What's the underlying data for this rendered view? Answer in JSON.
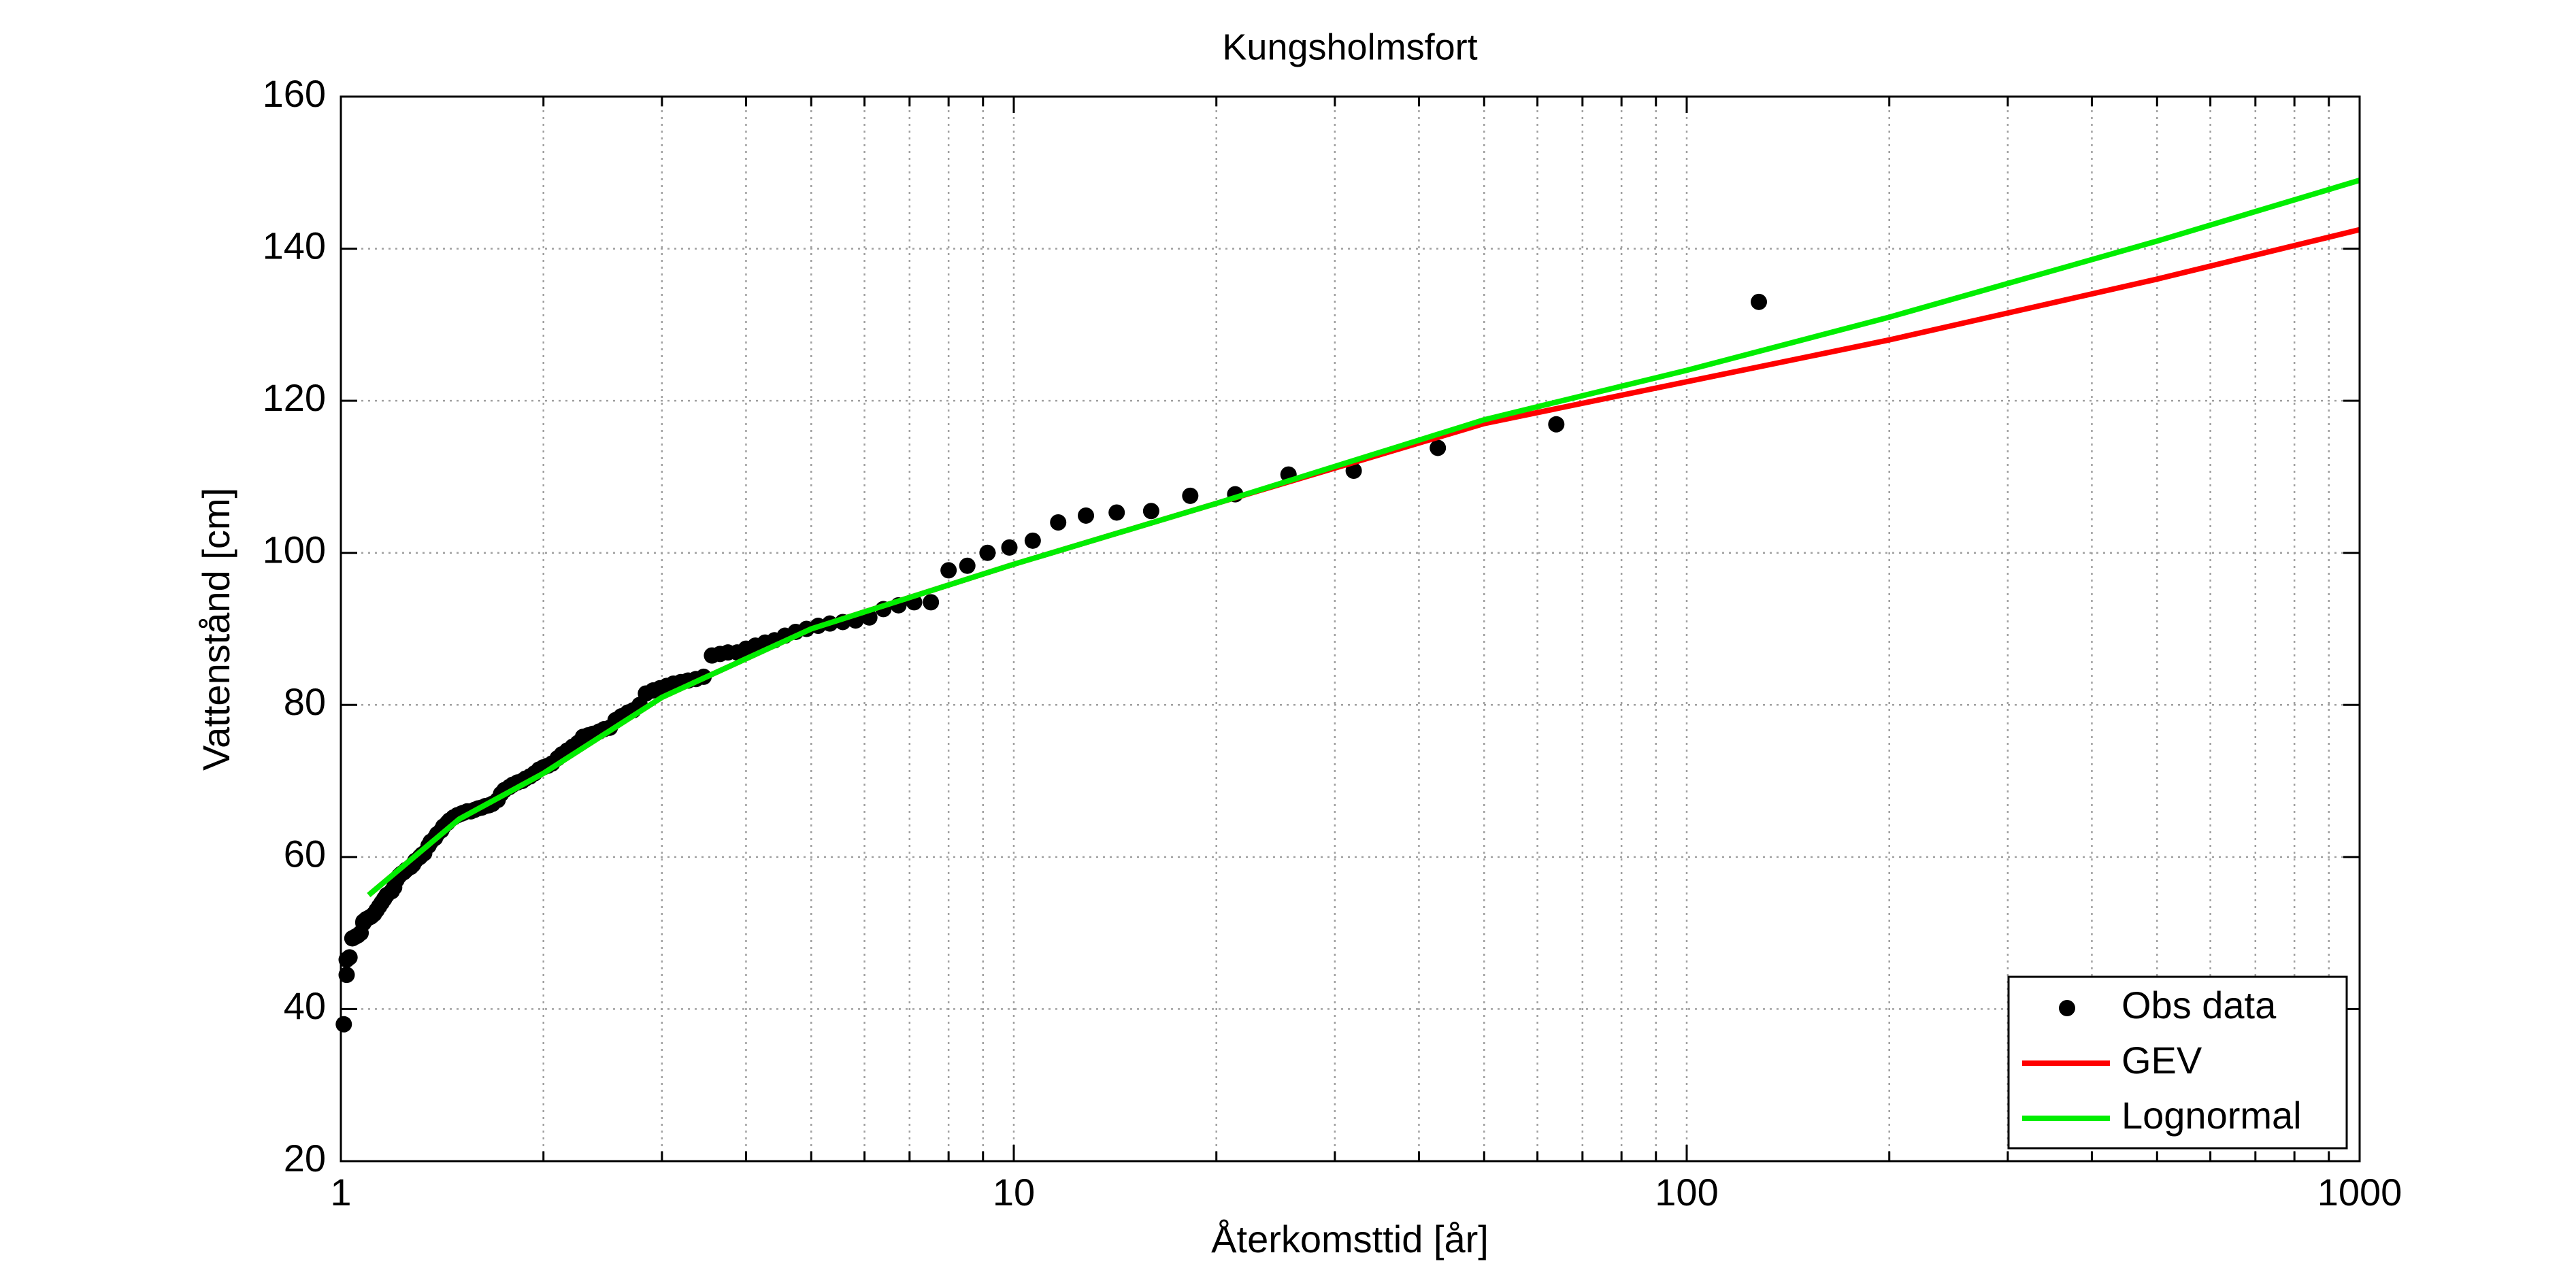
{
  "chart_data": {
    "type": "line",
    "title": "Kungsholmsfort",
    "xlabel": "Återkomsttid [år]",
    "ylabel": "Vattenstånd [cm]",
    "xscale": "log",
    "xlim": [
      1,
      1000
    ],
    "ylim": [
      20,
      160
    ],
    "xticks": [
      1,
      10,
      100,
      1000
    ],
    "xminorticks": [
      2,
      3,
      4,
      5,
      6,
      7,
      8,
      9,
      20,
      30,
      40,
      50,
      60,
      70,
      80,
      90,
      200,
      300,
      400,
      500,
      600,
      700,
      800,
      900
    ],
    "yticks": [
      20,
      40,
      60,
      80,
      100,
      120,
      140,
      160
    ],
    "grid": true,
    "legend": "lower right",
    "series": [
      {
        "name": "Obs data",
        "type": "scatter",
        "color": "#000000",
        "x": [
          128,
          64,
          42.67,
          32,
          25.6,
          21.33,
          18.29,
          16,
          14.22,
          12.8,
          11.64,
          10.67,
          9.85,
          9.14,
          8.53,
          8,
          7.53,
          7.11,
          6.74,
          6.4,
          6.1,
          5.82,
          5.57,
          5.33,
          5.12,
          4.92,
          4.74,
          4.57,
          4.41,
          4.27,
          4.13,
          4,
          3.88,
          3.76,
          3.66,
          3.56,
          3.46,
          3.37,
          3.28,
          3.2,
          3.12,
          3.05,
          2.98,
          2.91,
          2.84,
          2.78,
          2.72,
          2.67,
          2.61,
          2.56,
          2.51,
          2.46,
          2.42,
          2.37,
          2.33,
          2.29,
          2.25,
          2.21,
          2.17,
          2.13,
          2.1,
          2.06,
          2.03,
          2,
          1.97,
          1.94,
          1.91,
          1.88,
          1.86,
          1.83,
          1.8,
          1.78,
          1.75,
          1.73,
          1.71,
          1.68,
          1.66,
          1.64,
          1.62,
          1.6,
          1.58,
          1.56,
          1.54,
          1.52,
          1.51,
          1.49,
          1.47,
          1.45,
          1.44,
          1.42,
          1.41,
          1.39,
          1.38,
          1.36,
          1.35,
          1.33,
          1.32,
          1.31,
          1.29,
          1.28,
          1.27,
          1.25,
          1.24,
          1.23,
          1.22,
          1.21,
          1.2,
          1.19,
          1.17,
          1.16,
          1.15,
          1.14,
          1.13,
          1.12,
          1.11,
          1.1,
          1.09,
          1.08,
          1.08,
          1.07,
          1.06,
          1.05,
          1.04,
          1.03,
          1.02,
          1.02,
          1.01
        ],
        "values": [
          133,
          116.9,
          113.8,
          110.8,
          110.3,
          107.7,
          107.5,
          105.5,
          105.3,
          104.9,
          104,
          101.6,
          100.7,
          100,
          98.3,
          97.7,
          93.5,
          93.5,
          93.1,
          92.6,
          91.5,
          91.1,
          90.9,
          90.7,
          90.4,
          90,
          89.6,
          89.1,
          88.5,
          88.2,
          87.8,
          87.4,
          86.9,
          86.9,
          86.7,
          86.5,
          83.7,
          83.4,
          83.2,
          83,
          82.8,
          82.5,
          82.2,
          81.9,
          81.5,
          80,
          79.3,
          79,
          78.5,
          78,
          77,
          76.8,
          76.5,
          76.2,
          76,
          75.8,
          75,
          74.5,
          74,
          73.5,
          73,
          72.3,
          72,
          71.8,
          71.5,
          71,
          70.6,
          70.3,
          70,
          69.8,
          69.5,
          69.2,
          68.8,
          68.3,
          67.5,
          67,
          66.8,
          66.7,
          66.5,
          66.4,
          66.2,
          66,
          66,
          65.8,
          65.7,
          65.5,
          65.2,
          64.8,
          64.5,
          64,
          63.5,
          63,
          62.5,
          62,
          61.5,
          60.5,
          60.3,
          60,
          59.5,
          59,
          58.7,
          58.3,
          58,
          57.8,
          57.5,
          57,
          56,
          55.5,
          55,
          54.5,
          54,
          53.5,
          53,
          52.5,
          52.2,
          52,
          51.8,
          51.5,
          51.3,
          50,
          49.7,
          49.5,
          49.3,
          46.8,
          46.5,
          44.5,
          38
        ]
      },
      {
        "name": "GEV",
        "color": "#ff0000",
        "x": [
          1.1,
          1.5,
          2,
          3,
          5,
          10,
          20,
          50,
          100,
          200,
          500,
          1000
        ],
        "values": [
          55,
          65,
          71,
          81,
          90,
          98.5,
          106.5,
          117,
          122.5,
          128,
          136,
          142.5
        ]
      },
      {
        "name": "Lognormal",
        "color": "#00ee00",
        "x": [
          1.1,
          1.5,
          2,
          3,
          5,
          10,
          20,
          50,
          100,
          200,
          500,
          1000
        ],
        "values": [
          55,
          65,
          71,
          81,
          90,
          98.5,
          106.5,
          117.5,
          124,
          131,
          141,
          149
        ]
      }
    ]
  }
}
